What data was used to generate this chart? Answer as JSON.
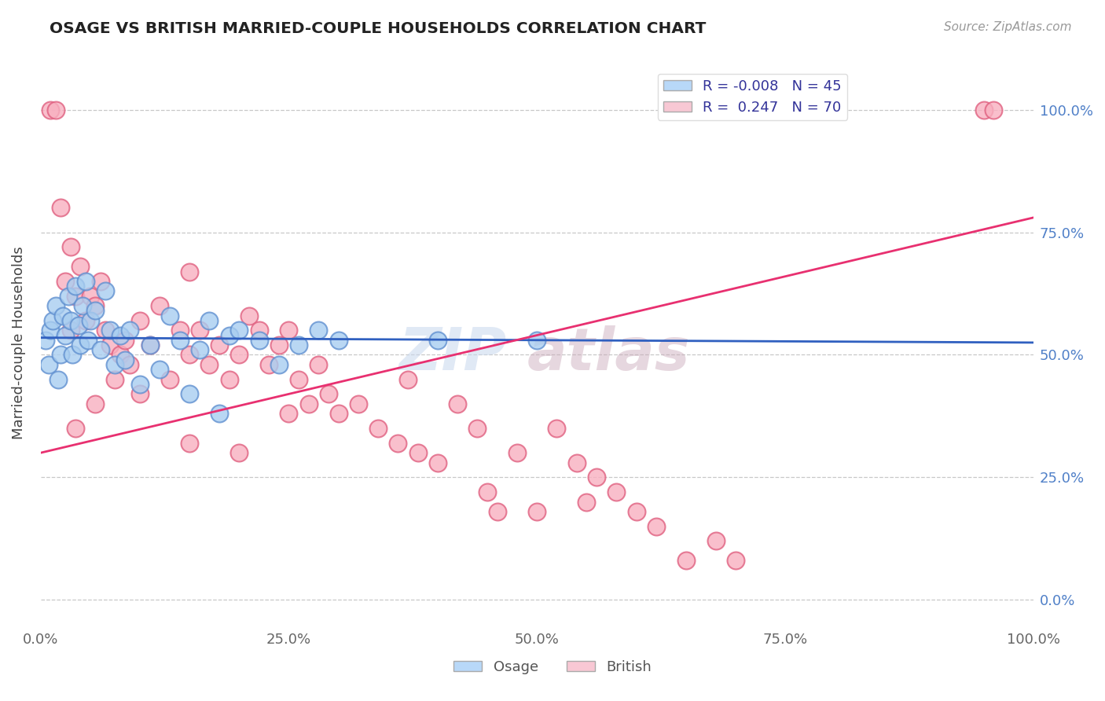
{
  "title": "OSAGE VS BRITISH MARRIED-COUPLE HOUSEHOLDS CORRELATION CHART",
  "source": "Source: ZipAtlas.com",
  "ylabel": "Married-couple Households",
  "xlim": [
    0,
    100
  ],
  "ylim": [
    -5,
    110
  ],
  "yticks": [
    0,
    25,
    50,
    75,
    100
  ],
  "ytick_labels": [
    "0.0%",
    "25.0%",
    "50.0%",
    "75.0%",
    "100.0%"
  ],
  "xticks": [
    0,
    25,
    50,
    75,
    100
  ],
  "xtick_labels": [
    "0.0%",
    "25.0%",
    "50.0%",
    "75.0%",
    "100.0%"
  ],
  "osage_color": "#a8cdf0",
  "british_color": "#f8b0c0",
  "osage_edge_color": "#6090d0",
  "british_edge_color": "#e06080",
  "osage_line_color": "#3060c0",
  "british_line_color": "#e83070",
  "legend_osage_color": "#b8d8f8",
  "legend_british_color": "#f8c8d4",
  "R_osage": -0.008,
  "N_osage": 45,
  "R_british": 0.247,
  "N_british": 70,
  "background_color": "#ffffff",
  "grid_color": "#c8c8c8",
  "osage_x": [
    0.5,
    0.8,
    1.0,
    1.2,
    1.5,
    1.8,
    2.0,
    2.2,
    2.5,
    2.8,
    3.0,
    3.2,
    3.5,
    3.8,
    4.0,
    4.2,
    4.5,
    4.8,
    5.0,
    5.5,
    6.0,
    6.5,
    7.0,
    7.5,
    8.0,
    8.5,
    9.0,
    10.0,
    11.0,
    12.0,
    13.0,
    14.0,
    15.0,
    16.0,
    17.0,
    18.0,
    19.0,
    20.0,
    22.0,
    24.0,
    26.0,
    28.0,
    30.0,
    40.0,
    50.0
  ],
  "osage_y": [
    53.0,
    48.0,
    55.0,
    57.0,
    60.0,
    45.0,
    50.0,
    58.0,
    54.0,
    62.0,
    57.0,
    50.0,
    64.0,
    56.0,
    52.0,
    60.0,
    65.0,
    53.0,
    57.0,
    59.0,
    51.0,
    63.0,
    55.0,
    48.0,
    54.0,
    49.0,
    55.0,
    44.0,
    52.0,
    47.0,
    58.0,
    53.0,
    42.0,
    51.0,
    57.0,
    38.0,
    54.0,
    55.0,
    53.0,
    48.0,
    52.0,
    55.0,
    53.0,
    53.0,
    53.0
  ],
  "british_x": [
    1.0,
    1.5,
    2.0,
    2.5,
    3.0,
    3.0,
    3.5,
    4.0,
    4.5,
    5.0,
    5.5,
    6.0,
    6.5,
    7.0,
    8.0,
    8.5,
    9.0,
    10.0,
    11.0,
    12.0,
    13.0,
    14.0,
    15.0,
    15.0,
    16.0,
    17.0,
    18.0,
    19.0,
    20.0,
    21.0,
    22.0,
    23.0,
    24.0,
    25.0,
    26.0,
    27.0,
    28.0,
    29.0,
    30.0,
    32.0,
    34.0,
    36.0,
    37.0,
    38.0,
    40.0,
    42.0,
    44.0,
    45.0,
    46.0,
    48.0,
    50.0,
    52.0,
    54.0,
    55.0,
    56.0,
    58.0,
    60.0,
    62.0,
    65.0,
    68.0,
    70.0,
    3.5,
    5.5,
    7.5,
    10.0,
    15.0,
    20.0,
    25.0,
    95.0,
    96.0
  ],
  "british_y": [
    100.0,
    100.0,
    80.0,
    65.0,
    72.0,
    55.0,
    62.0,
    68.0,
    57.0,
    62.0,
    60.0,
    65.0,
    55.0,
    52.0,
    50.0,
    53.0,
    48.0,
    57.0,
    52.0,
    60.0,
    45.0,
    55.0,
    50.0,
    67.0,
    55.0,
    48.0,
    52.0,
    45.0,
    50.0,
    58.0,
    55.0,
    48.0,
    52.0,
    55.0,
    45.0,
    40.0,
    48.0,
    42.0,
    38.0,
    40.0,
    35.0,
    32.0,
    45.0,
    30.0,
    28.0,
    40.0,
    35.0,
    22.0,
    18.0,
    30.0,
    18.0,
    35.0,
    28.0,
    20.0,
    25.0,
    22.0,
    18.0,
    15.0,
    8.0,
    12.0,
    8.0,
    35.0,
    40.0,
    45.0,
    42.0,
    32.0,
    30.0,
    38.0,
    100.0,
    100.0
  ]
}
